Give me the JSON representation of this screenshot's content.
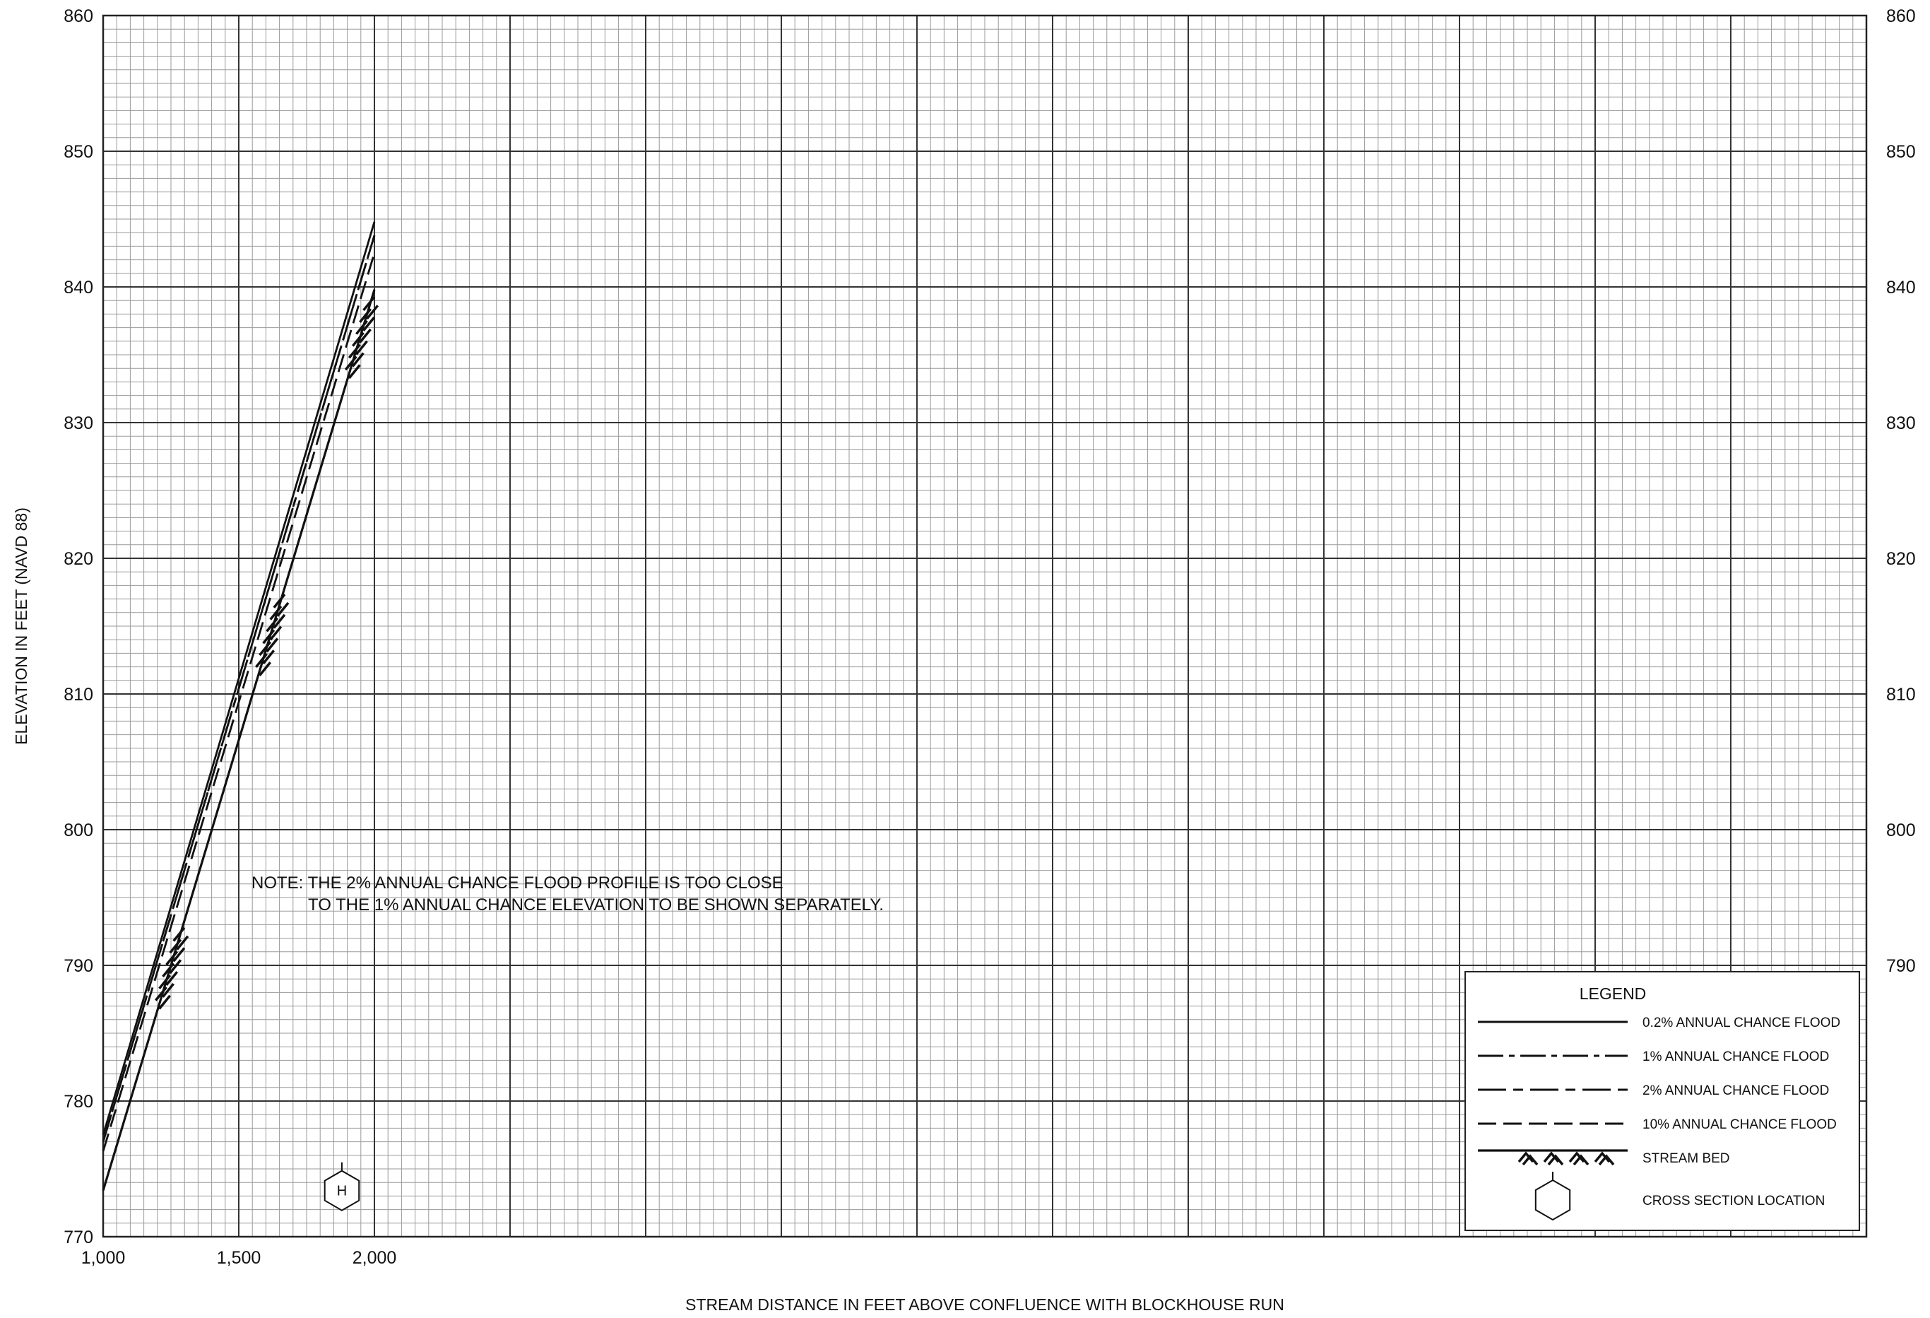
{
  "chart_data": {
    "type": "line",
    "xlabel": "STREAM DISTANCE IN FEET ABOVE CONFLUENCE WITH BLOCKHOUSE RUN",
    "ylabel": "ELEVATION IN FEET (NAVD 88)",
    "xlim": [
      1000,
      7500
    ],
    "ylim": [
      770,
      860
    ],
    "x_ticks": [
      {
        "value": 1000,
        "label": "1,000"
      },
      {
        "value": 1500,
        "label": "1,500"
      },
      {
        "value": 2000,
        "label": "2,000"
      }
    ],
    "y_ticks": [
      770,
      780,
      790,
      800,
      810,
      820,
      830,
      840,
      850,
      860
    ],
    "y_ticks_right": [
      790,
      800,
      810,
      820,
      830,
      840,
      850,
      860
    ],
    "grid": true,
    "major_grid_x_step": 500,
    "major_grid_y_step": 10,
    "minor_grid_x_step": 50,
    "minor_grid_y_step": 1,
    "series": [
      {
        "name": "0.2% ANNUAL CHANCE FLOOD",
        "style": "solid",
        "x": [
          1000,
          2000
        ],
        "y": [
          777.5,
          844.8
        ]
      },
      {
        "name": "1% ANNUAL CHANCE FLOOD",
        "style": "dash-dot",
        "x": [
          1000,
          2000
        ],
        "y": [
          777.0,
          843.8
        ]
      },
      {
        "name": "2% ANNUAL CHANCE FLOOD",
        "style": "long-dash-short-dash",
        "x": [
          1000,
          2000
        ],
        "y": [
          777.0,
          843.8
        ]
      },
      {
        "name": "10% ANNUAL CHANCE FLOOD",
        "style": "dashed",
        "x": [
          1000,
          2000
        ],
        "y": [
          776.3,
          842.5
        ]
      },
      {
        "name": "STREAM BED",
        "style": "thick-hatched",
        "x": [
          1000,
          2000
        ],
        "y": [
          773.4,
          839.8
        ]
      }
    ],
    "stream_bed_hatch_x": [
      1250,
      1620,
      1950
    ],
    "cross_sections": [
      {
        "letter": "H",
        "x": 1880
      }
    ],
    "note": {
      "line1": "NOTE: THE 2% ANNUAL CHANCE FLOOD PROFILE IS TOO CLOSE",
      "line2": "TO THE 1% ANNUAL CHANCE ELEVATION TO BE SHOWN SEPARATELY."
    },
    "legend": {
      "title": "LEGEND",
      "placement": "bottom-right",
      "items": [
        {
          "label": "0.2% ANNUAL CHANCE FLOOD",
          "symbol": "solid"
        },
        {
          "label": "1% ANNUAL CHANCE FLOOD",
          "symbol": "dash-dot"
        },
        {
          "label": "2% ANNUAL CHANCE FLOOD",
          "symbol": "long-dash-short-dash"
        },
        {
          "label": "10% ANNUAL CHANCE FLOOD",
          "symbol": "dashed"
        },
        {
          "label": "STREAM BED",
          "symbol": "stream-bed"
        },
        {
          "label": "CROSS SECTION LOCATION",
          "symbol": "hexagon"
        }
      ]
    }
  }
}
